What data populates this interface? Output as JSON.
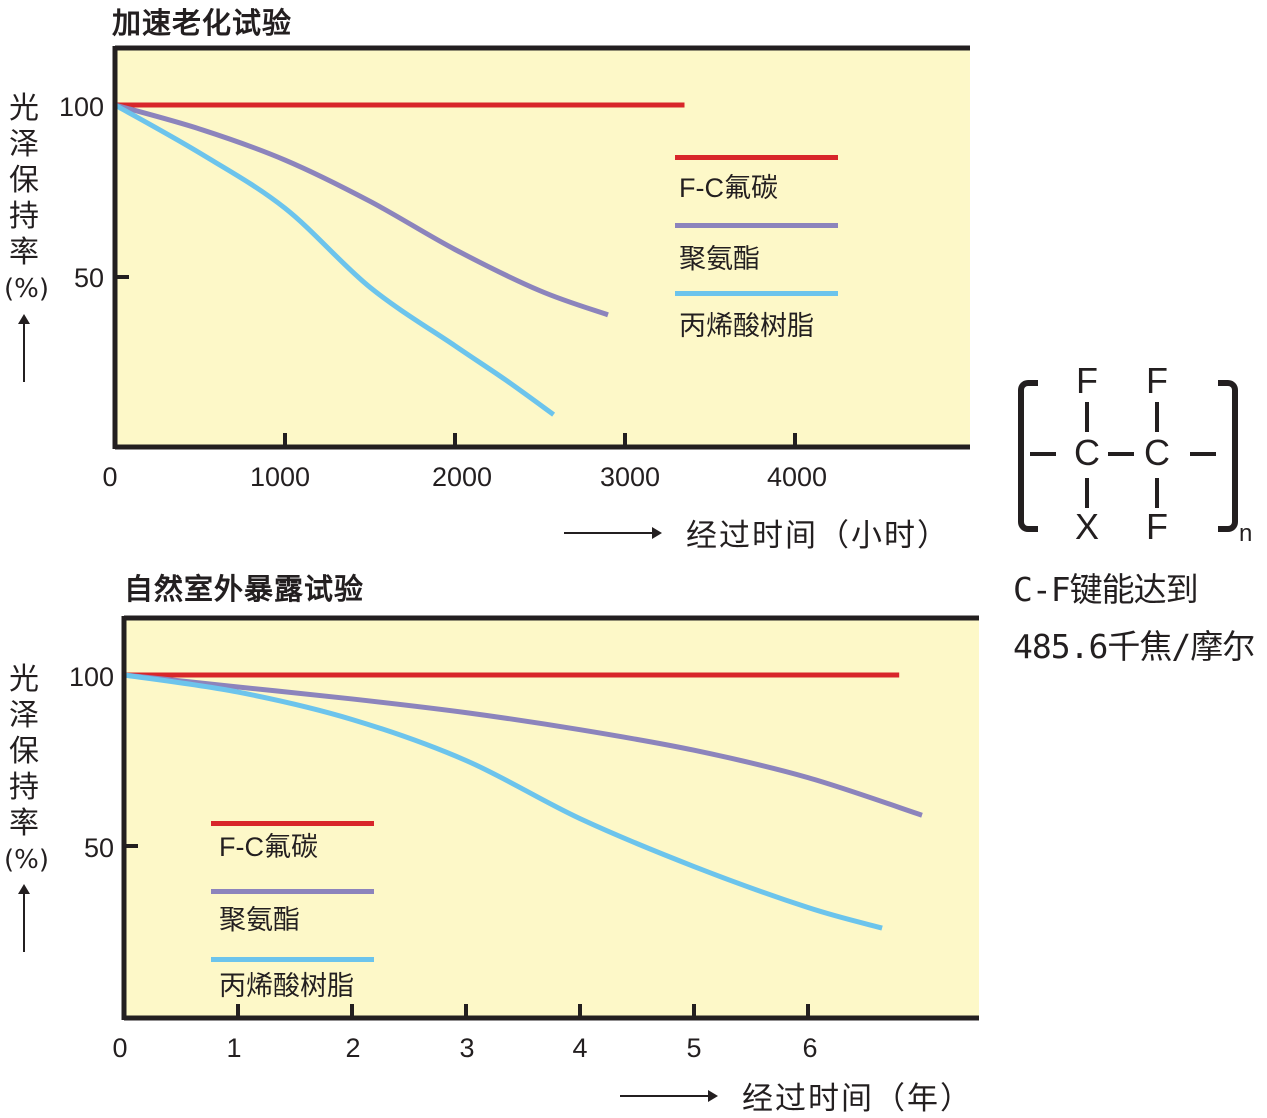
{
  "colors": {
    "fc_fluorocarbon": "#d8262a",
    "polyurethane": "#8c84bc",
    "acrylic_resin": "#6cc4ec",
    "plot_background": "#fdf8c8",
    "axis": "#231f20"
  },
  "top_chart": {
    "title": "加速老化试验",
    "ylabel_chars": [
      "光",
      "泽",
      "保",
      "持",
      "率",
      "(%)"
    ],
    "yticks": [
      "100",
      "50"
    ],
    "xticks": [
      "0",
      "1000",
      "2000",
      "3000",
      "4000"
    ],
    "xlabel": "经过时间（小时）",
    "legend": [
      "F-C氟碳",
      "聚氨酯",
      "丙烯酸树脂"
    ]
  },
  "bottom_chart": {
    "title": "自然室外暴露试验",
    "ylabel_chars": [
      "光",
      "泽",
      "保",
      "持",
      "率",
      "(%)"
    ],
    "yticks": [
      "100",
      "50"
    ],
    "xticks": [
      "0",
      "1",
      "2",
      "3",
      "4",
      "5",
      "6"
    ],
    "xlabel": "经过时间（年）",
    "legend": [
      "F-C氟碳",
      "聚氨酯",
      "丙烯酸树脂"
    ]
  },
  "formula": {
    "top_atoms": [
      "F",
      "F"
    ],
    "center_atoms": [
      "C",
      "C"
    ],
    "bottom_atoms": [
      "X",
      "F"
    ],
    "subscript": "n"
  },
  "note": {
    "line1": "C-F键能达到",
    "line2": "485.6千焦/摩尔"
  },
  "chart_data": [
    {
      "type": "line",
      "title": "加速老化试验",
      "xlabel": "经过时间（小时）",
      "ylabel": "光泽保持率(%)",
      "xlim": [
        0,
        5000
      ],
      "ylim": [
        0,
        120
      ],
      "xticks": [
        0,
        1000,
        2000,
        3000,
        4000
      ],
      "yticks": [
        50,
        100
      ],
      "grid": false,
      "legend_position": "upper right (inside)",
      "series": [
        {
          "name": "F-C氟碳",
          "color": "#d8262a",
          "x": [
            0,
            1000,
            2000,
            3000,
            3350
          ],
          "y": [
            100,
            100,
            100,
            100,
            100
          ]
        },
        {
          "name": "聚氨酯",
          "color": "#8c84bc",
          "x": [
            0,
            500,
            1000,
            1500,
            2000,
            2500,
            2900
          ],
          "y": [
            100,
            93,
            84,
            72,
            58,
            46,
            39
          ]
        },
        {
          "name": "丙烯酸树脂",
          "color": "#6cc4ec",
          "x": [
            0,
            500,
            1000,
            1500,
            2000,
            2300,
            2580
          ],
          "y": [
            100,
            86,
            70,
            47,
            30,
            20,
            10
          ]
        }
      ]
    },
    {
      "type": "line",
      "title": "自然室外暴露试验",
      "xlabel": "经过时间（年）",
      "ylabel": "光泽保持率(%)",
      "xlim": [
        0,
        7.5
      ],
      "ylim": [
        0,
        120
      ],
      "xticks": [
        0,
        1,
        2,
        3,
        4,
        5,
        6
      ],
      "yticks": [
        50,
        100
      ],
      "grid": false,
      "legend_position": "lower left (inside)",
      "series": [
        {
          "name": "F-C氟碳",
          "color": "#d8262a",
          "x": [
            0,
            2,
            4,
            6,
            6.8
          ],
          "y": [
            100,
            100,
            100,
            100,
            100
          ]
        },
        {
          "name": "聚氨酯",
          "color": "#8c84bc",
          "x": [
            0,
            1,
            2,
            3,
            4,
            5,
            6,
            7
          ],
          "y": [
            100,
            96.5,
            93,
            89,
            84,
            78,
            70,
            59
          ]
        },
        {
          "name": "丙烯酸树脂",
          "color": "#6cc4ec",
          "x": [
            0,
            1,
            2,
            3,
            4,
            5,
            6,
            6.65
          ],
          "y": [
            100,
            95,
            87,
            75,
            58,
            44,
            32,
            26
          ]
        }
      ]
    }
  ]
}
